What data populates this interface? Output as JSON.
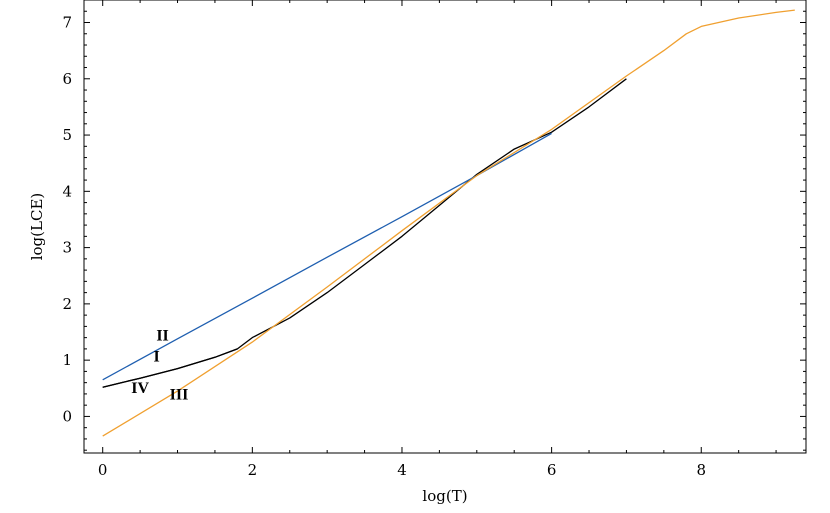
{
  "chart_data": {
    "type": "line",
    "xlabel": "log(T)",
    "ylabel": "log(LCE)",
    "xlim": [
      -0.25,
      9.4
    ],
    "ylim": [
      -0.65,
      7.4
    ],
    "x_ticks": [
      "0",
      "2",
      "4",
      "6",
      "8"
    ],
    "y_ticks": [
      "0",
      "1",
      "2",
      "3",
      "4",
      "5",
      "6",
      "7"
    ],
    "grid": false,
    "legend": "none",
    "series": [
      {
        "name": "I",
        "color": "#000000",
        "points": [
          [
            0,
            0.52
          ],
          [
            0.5,
            0.68
          ],
          [
            1.0,
            0.85
          ],
          [
            1.5,
            1.05
          ],
          [
            1.8,
            1.2
          ],
          [
            2.0,
            1.4
          ],
          [
            2.5,
            1.75
          ],
          [
            3.0,
            2.2
          ],
          [
            3.5,
            2.7
          ],
          [
            4.0,
            3.2
          ],
          [
            4.5,
            3.75
          ],
          [
            5.0,
            4.3
          ],
          [
            5.5,
            4.75
          ],
          [
            6.0,
            5.05
          ],
          [
            6.5,
            5.5
          ],
          [
            7.0,
            6.0
          ]
        ]
      },
      {
        "name": "II",
        "color": "#1f5fb0",
        "points": [
          [
            0,
            0.65
          ],
          [
            1.0,
            1.38
          ],
          [
            2.0,
            2.1
          ],
          [
            3.0,
            2.83
          ],
          [
            4.0,
            3.55
          ],
          [
            5.0,
            4.28
          ],
          [
            6.0,
            5.03
          ]
        ]
      },
      {
        "name": "III",
        "color": "#f0a030",
        "points": [
          [
            0,
            -0.35
          ],
          [
            1.0,
            0.45
          ],
          [
            2.0,
            1.32
          ],
          [
            3.0,
            2.3
          ],
          [
            4.0,
            3.3
          ],
          [
            5.0,
            4.28
          ],
          [
            6.0,
            5.1
          ],
          [
            7.0,
            6.05
          ],
          [
            7.5,
            6.5
          ],
          [
            7.8,
            6.8
          ],
          [
            8.0,
            6.93
          ],
          [
            8.5,
            7.08
          ],
          [
            9.0,
            7.18
          ],
          [
            9.25,
            7.22
          ]
        ]
      },
      {
        "name": "IV",
        "color": "#000000",
        "points": [
          [
            0,
            0.52
          ],
          [
            0.5,
            0.68
          ],
          [
            1.0,
            0.85
          ],
          [
            1.5,
            1.05
          ],
          [
            1.8,
            1.2
          ]
        ]
      }
    ],
    "curve_labels": [
      {
        "text": "II",
        "x": 0.8,
        "y": 1.35
      },
      {
        "text": "I",
        "x": 0.72,
        "y": 0.98
      },
      {
        "text": "IV",
        "x": 0.5,
        "y": 0.42
      },
      {
        "text": "III",
        "x": 1.02,
        "y": 0.3
      }
    ]
  }
}
